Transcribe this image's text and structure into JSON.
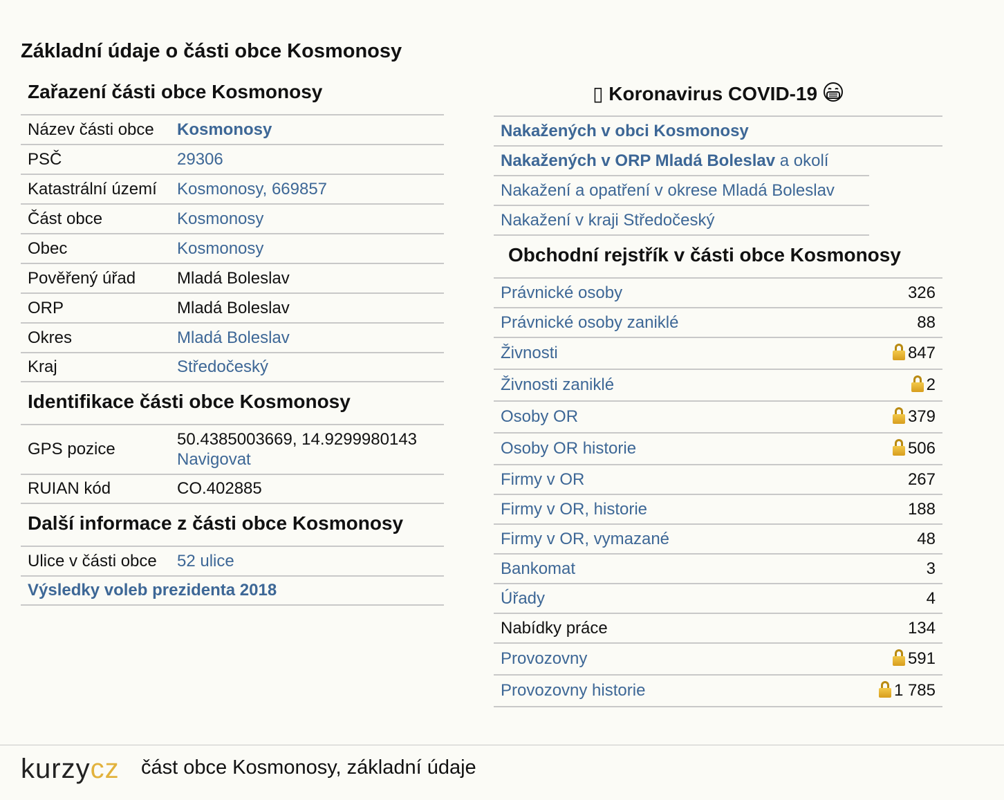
{
  "page_title": "Základní údaje o části obce Kosmonosy",
  "left": {
    "zarazeni": {
      "title": "Zařazení části obce Kosmonosy",
      "rows": [
        {
          "k": "Název části obce",
          "v": "Kosmonosy"
        },
        {
          "k": "PSČ",
          "v": "29306"
        },
        {
          "k": "Katastrální území",
          "v": "Kosmonosy, 669857"
        },
        {
          "k": "Část obce",
          "v": "Kosmonosy"
        },
        {
          "k": "Obec",
          "v": "Kosmonosy"
        },
        {
          "k": "Pověřený úřad",
          "v": "Mladá Boleslav"
        },
        {
          "k": "ORP",
          "v": "Mladá Boleslav"
        },
        {
          "k": "Okres",
          "v": "Mladá Boleslav"
        },
        {
          "k": "Kraj",
          "v": "Středočeský"
        }
      ]
    },
    "identifikace": {
      "title": "Identifikace části obce Kosmonosy",
      "gps_label": "GPS pozice",
      "gps_value": "50.4385003669, 14.9299980143",
      "gps_nav": "Navigovat",
      "ruian_label": "RUIAN kód",
      "ruian_value": "CO.402885"
    },
    "dalsi": {
      "title": "Další informace z části obce Kosmonosy",
      "ulice_label": "Ulice v části obce",
      "ulice_value": "52 ulice",
      "volby": "Výsledky voleb prezidenta 2018"
    }
  },
  "right": {
    "covid": {
      "title": "Koronavirus COVID-19",
      "lead_glyph": "▯",
      "links": [
        {
          "bold": "Nakažených v obci Kosmonosy",
          "rest": ""
        },
        {
          "bold": "Nakažených v ORP Mladá Boleslav",
          "rest": " a okolí"
        },
        {
          "bold": "",
          "rest": "Nakažení a opatření v okrese Mladá Boleslav"
        },
        {
          "bold": "",
          "rest": "Nakažení v kraji Středočeský"
        }
      ]
    },
    "rejstrik": {
      "title": "Obchodní rejstřík v části obce Kosmonosy",
      "rows": [
        {
          "label": "Právnické osoby",
          "value": "326",
          "lock": false,
          "link": true
        },
        {
          "label": "Právnické osoby zaniklé",
          "value": "88",
          "lock": false,
          "link": true
        },
        {
          "label": "Živnosti",
          "value": "847",
          "lock": true,
          "link": true
        },
        {
          "label": "Živnosti zaniklé",
          "value": "2",
          "lock": true,
          "link": true
        },
        {
          "label": "Osoby OR",
          "value": "379",
          "lock": true,
          "link": true
        },
        {
          "label": "Osoby OR historie",
          "value": "506",
          "lock": true,
          "link": true
        },
        {
          "label": "Firmy v OR",
          "value": "267",
          "lock": false,
          "link": true
        },
        {
          "label": "Firmy v OR, historie",
          "value": "188",
          "lock": false,
          "link": true
        },
        {
          "label": "Firmy v OR, vymazané",
          "value": "48",
          "lock": false,
          "link": true
        },
        {
          "label": "Bankomat",
          "value": "3",
          "lock": false,
          "link": true
        },
        {
          "label": "Úřady",
          "value": "4",
          "lock": false,
          "link": true
        },
        {
          "label": "Nabídky práce",
          "value": "134",
          "lock": false,
          "link": false
        },
        {
          "label": "Provozovny",
          "value": "591",
          "lock": true,
          "link": true
        },
        {
          "label": "Provozovny historie",
          "value": "1 785",
          "lock": true,
          "link": true
        }
      ]
    }
  },
  "footer": {
    "logo_part1": "kurzy",
    "logo_part2": "cz",
    "text": "část obce Kosmonosy, základní údaje"
  },
  "colors": {
    "link": "#3d6796",
    "lock": "#e2b23c",
    "background": "#fbfbf6"
  }
}
